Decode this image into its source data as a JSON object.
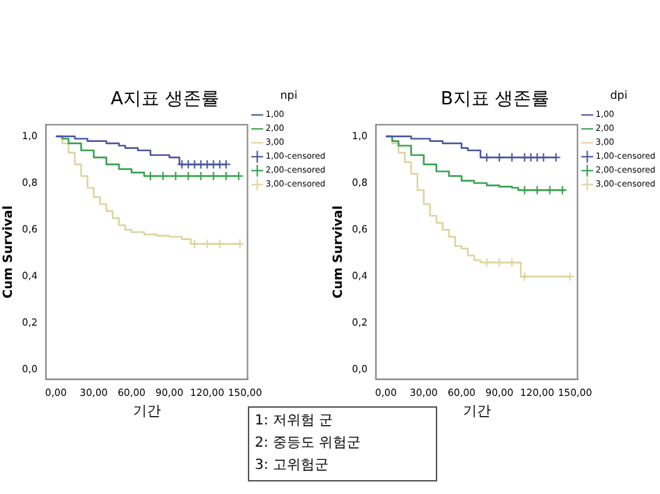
{
  "chart_data": [
    {
      "type": "step",
      "title": "A지표 생존률",
      "xlabel": "기간",
      "ylabel": "Cum Survival",
      "legend_title": "npi",
      "legend": "right",
      "grid": false,
      "line_style": "solid",
      "xlim": [
        -8,
        152
      ],
      "ylim": [
        -0.04,
        1.05
      ],
      "xticks": [
        {
          "value": 0,
          "label": "0,00"
        },
        {
          "value": 30,
          "label": "30,00"
        },
        {
          "value": 60,
          "label": "60,00"
        },
        {
          "value": 90,
          "label": "90,00"
        },
        {
          "value": 120,
          "label": "120,00"
        },
        {
          "value": 150,
          "label": "150,00"
        }
      ],
      "yticks": [
        {
          "value": 0,
          "label": "0,0"
        },
        {
          "value": 0.2,
          "label": "0,2"
        },
        {
          "value": 0.4,
          "label": "0,4"
        },
        {
          "value": 0.6,
          "label": "0,6"
        },
        {
          "value": 0.8,
          "label": "0,8"
        },
        {
          "value": 1,
          "label": "1,0"
        }
      ],
      "annotations": [
        "1: 저위험 군",
        "2: 중등도 위험군",
        "3: 고위험군"
      ],
      "series": [
        {
          "name": "1,00",
          "type": "step",
          "marker": "none",
          "color": "#4a55a0",
          "x": [
            0,
            15,
            25,
            40,
            50,
            55,
            65,
            75,
            90,
            98,
            135
          ],
          "values": [
            1,
            0.99,
            0.98,
            0.97,
            0.96,
            0.95,
            0.94,
            0.92,
            0.91,
            0.88,
            0.88
          ]
        },
        {
          "name": "2,00",
          "type": "step",
          "marker": "none",
          "color": "#34a04c",
          "x": [
            0,
            5,
            10,
            20,
            30,
            40,
            50,
            60,
            70,
            145
          ],
          "values": [
            1,
            0.99,
            0.97,
            0.94,
            0.91,
            0.88,
            0.86,
            0.845,
            0.83,
            0.83
          ]
        },
        {
          "name": "3,00",
          "type": "step",
          "marker": "none",
          "color": "#dcd49c",
          "x": [
            0,
            5,
            10,
            15,
            20,
            25,
            30,
            35,
            40,
            45,
            50,
            55,
            60,
            70,
            80,
            90,
            100,
            107,
            146
          ],
          "values": [
            1,
            0.97,
            0.93,
            0.88,
            0.83,
            0.78,
            0.74,
            0.71,
            0.68,
            0.65,
            0.62,
            0.6,
            0.59,
            0.58,
            0.575,
            0.57,
            0.56,
            0.54,
            0.54
          ]
        },
        {
          "name": "1,00-censored",
          "type": "scatter",
          "marker": "cross",
          "color": "#4a55a0",
          "x": [
            100,
            105,
            110,
            115,
            120,
            125,
            130,
            135
          ],
          "values": [
            0.88,
            0.88,
            0.88,
            0.88,
            0.88,
            0.88,
            0.88,
            0.88
          ]
        },
        {
          "name": "2,00-censored",
          "type": "scatter",
          "marker": "cross",
          "color": "#34a04c",
          "x": [
            75,
            85,
            95,
            105,
            115,
            125,
            135,
            145
          ],
          "values": [
            0.83,
            0.83,
            0.83,
            0.83,
            0.83,
            0.83,
            0.83,
            0.83
          ]
        },
        {
          "name": "3,00-censored",
          "type": "scatter",
          "marker": "cross",
          "color": "#dcd49c",
          "x": [
            110,
            120,
            130,
            146
          ],
          "values": [
            0.54,
            0.54,
            0.54,
            0.54
          ]
        }
      ]
    },
    {
      "type": "step",
      "title": "B지표 생존률",
      "xlabel": "기간",
      "ylabel": "Cum Survival",
      "legend_title": "dpi",
      "legend": "right",
      "grid": false,
      "line_style": "solid",
      "xlim": [
        -8,
        152
      ],
      "ylim": [
        -0.04,
        1.05
      ],
      "xticks": [
        {
          "value": 0,
          "label": "0,00"
        },
        {
          "value": 30,
          "label": "30,00"
        },
        {
          "value": 60,
          "label": "60,00"
        },
        {
          "value": 90,
          "label": "90,00"
        },
        {
          "value": 120,
          "label": "120,00"
        },
        {
          "value": 150,
          "label": "150,00"
        }
      ],
      "yticks": [
        {
          "value": 0,
          "label": "0,0"
        },
        {
          "value": 0.2,
          "label": "0,2"
        },
        {
          "value": 0.4,
          "label": "0,4"
        },
        {
          "value": 0.6,
          "label": "0,6"
        },
        {
          "value": 0.8,
          "label": "0,8"
        },
        {
          "value": 1,
          "label": "1,0"
        }
      ],
      "series": [
        {
          "name": "1,00",
          "type": "step",
          "marker": "none",
          "color": "#4a55a0",
          "x": [
            0,
            20,
            35,
            45,
            60,
            65,
            75,
            135
          ],
          "values": [
            1,
            0.99,
            0.98,
            0.97,
            0.95,
            0.94,
            0.91,
            0.91
          ]
        },
        {
          "name": "2,00",
          "type": "step",
          "marker": "none",
          "color": "#34a04c",
          "x": [
            0,
            5,
            10,
            20,
            30,
            40,
            50,
            60,
            70,
            80,
            90,
            100,
            105,
            142
          ],
          "values": [
            1,
            0.98,
            0.96,
            0.92,
            0.88,
            0.85,
            0.83,
            0.81,
            0.8,
            0.79,
            0.785,
            0.78,
            0.77,
            0.77
          ]
        },
        {
          "name": "3,00",
          "type": "step",
          "marker": "none",
          "color": "#dcd49c",
          "x": [
            0,
            5,
            10,
            15,
            20,
            25,
            30,
            35,
            40,
            45,
            50,
            55,
            60,
            65,
            70,
            75,
            107,
            146
          ],
          "values": [
            1,
            0.97,
            0.93,
            0.89,
            0.84,
            0.77,
            0.71,
            0.66,
            0.63,
            0.6,
            0.57,
            0.53,
            0.52,
            0.49,
            0.47,
            0.46,
            0.4,
            0.4
          ]
        },
        {
          "name": "1,00-censored",
          "type": "scatter",
          "marker": "cross",
          "color": "#4a55a0",
          "x": [
            80,
            90,
            100,
            110,
            115,
            120,
            125,
            135
          ],
          "values": [
            0.91,
            0.91,
            0.91,
            0.91,
            0.91,
            0.91,
            0.91,
            0.91
          ]
        },
        {
          "name": "2,00-censored",
          "type": "scatter",
          "marker": "cross",
          "color": "#34a04c",
          "x": [
            110,
            120,
            130,
            140
          ],
          "values": [
            0.77,
            0.77,
            0.77,
            0.77
          ]
        },
        {
          "name": "3,00-censored",
          "type": "scatter",
          "marker": "cross",
          "color": "#dcd49c",
          "x": [
            80,
            90,
            100,
            110,
            146
          ],
          "values": [
            0.46,
            0.46,
            0.46,
            0.4,
            0.4
          ]
        }
      ]
    }
  ]
}
